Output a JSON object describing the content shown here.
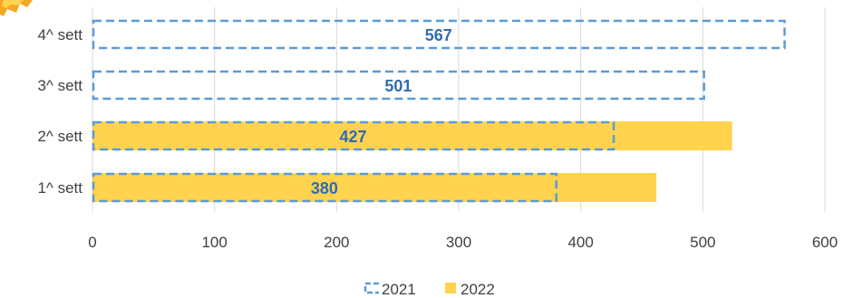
{
  "chart_data": {
    "type": "bar",
    "orientation": "horizontal",
    "categories": [
      "1^ sett",
      "2^ sett",
      "3^ sett",
      "4^ sett"
    ],
    "series": [
      {
        "name": "2021",
        "values": [
          380,
          427,
          501,
          567
        ],
        "style": "dashed-outline",
        "color": "#5B9BD5",
        "data_labels": [
          "380",
          "427",
          "501",
          "567"
        ]
      },
      {
        "name": "2022",
        "values": [
          462,
          524,
          null,
          null
        ],
        "style": "filled",
        "color": "#FFD34E"
      }
    ],
    "xlim": [
      0,
      600
    ],
    "x_ticks": [
      "0",
      "100",
      "200",
      "300",
      "400",
      "500",
      "600"
    ],
    "grid": "vertical",
    "legend_position": "bottom",
    "title": "",
    "xlabel": "",
    "ylabel": ""
  },
  "colors": {
    "label_color": "#2E6DB4",
    "grid": "#D9D9D9",
    "axis_text": "#404040",
    "decoration": "#F5A623"
  }
}
